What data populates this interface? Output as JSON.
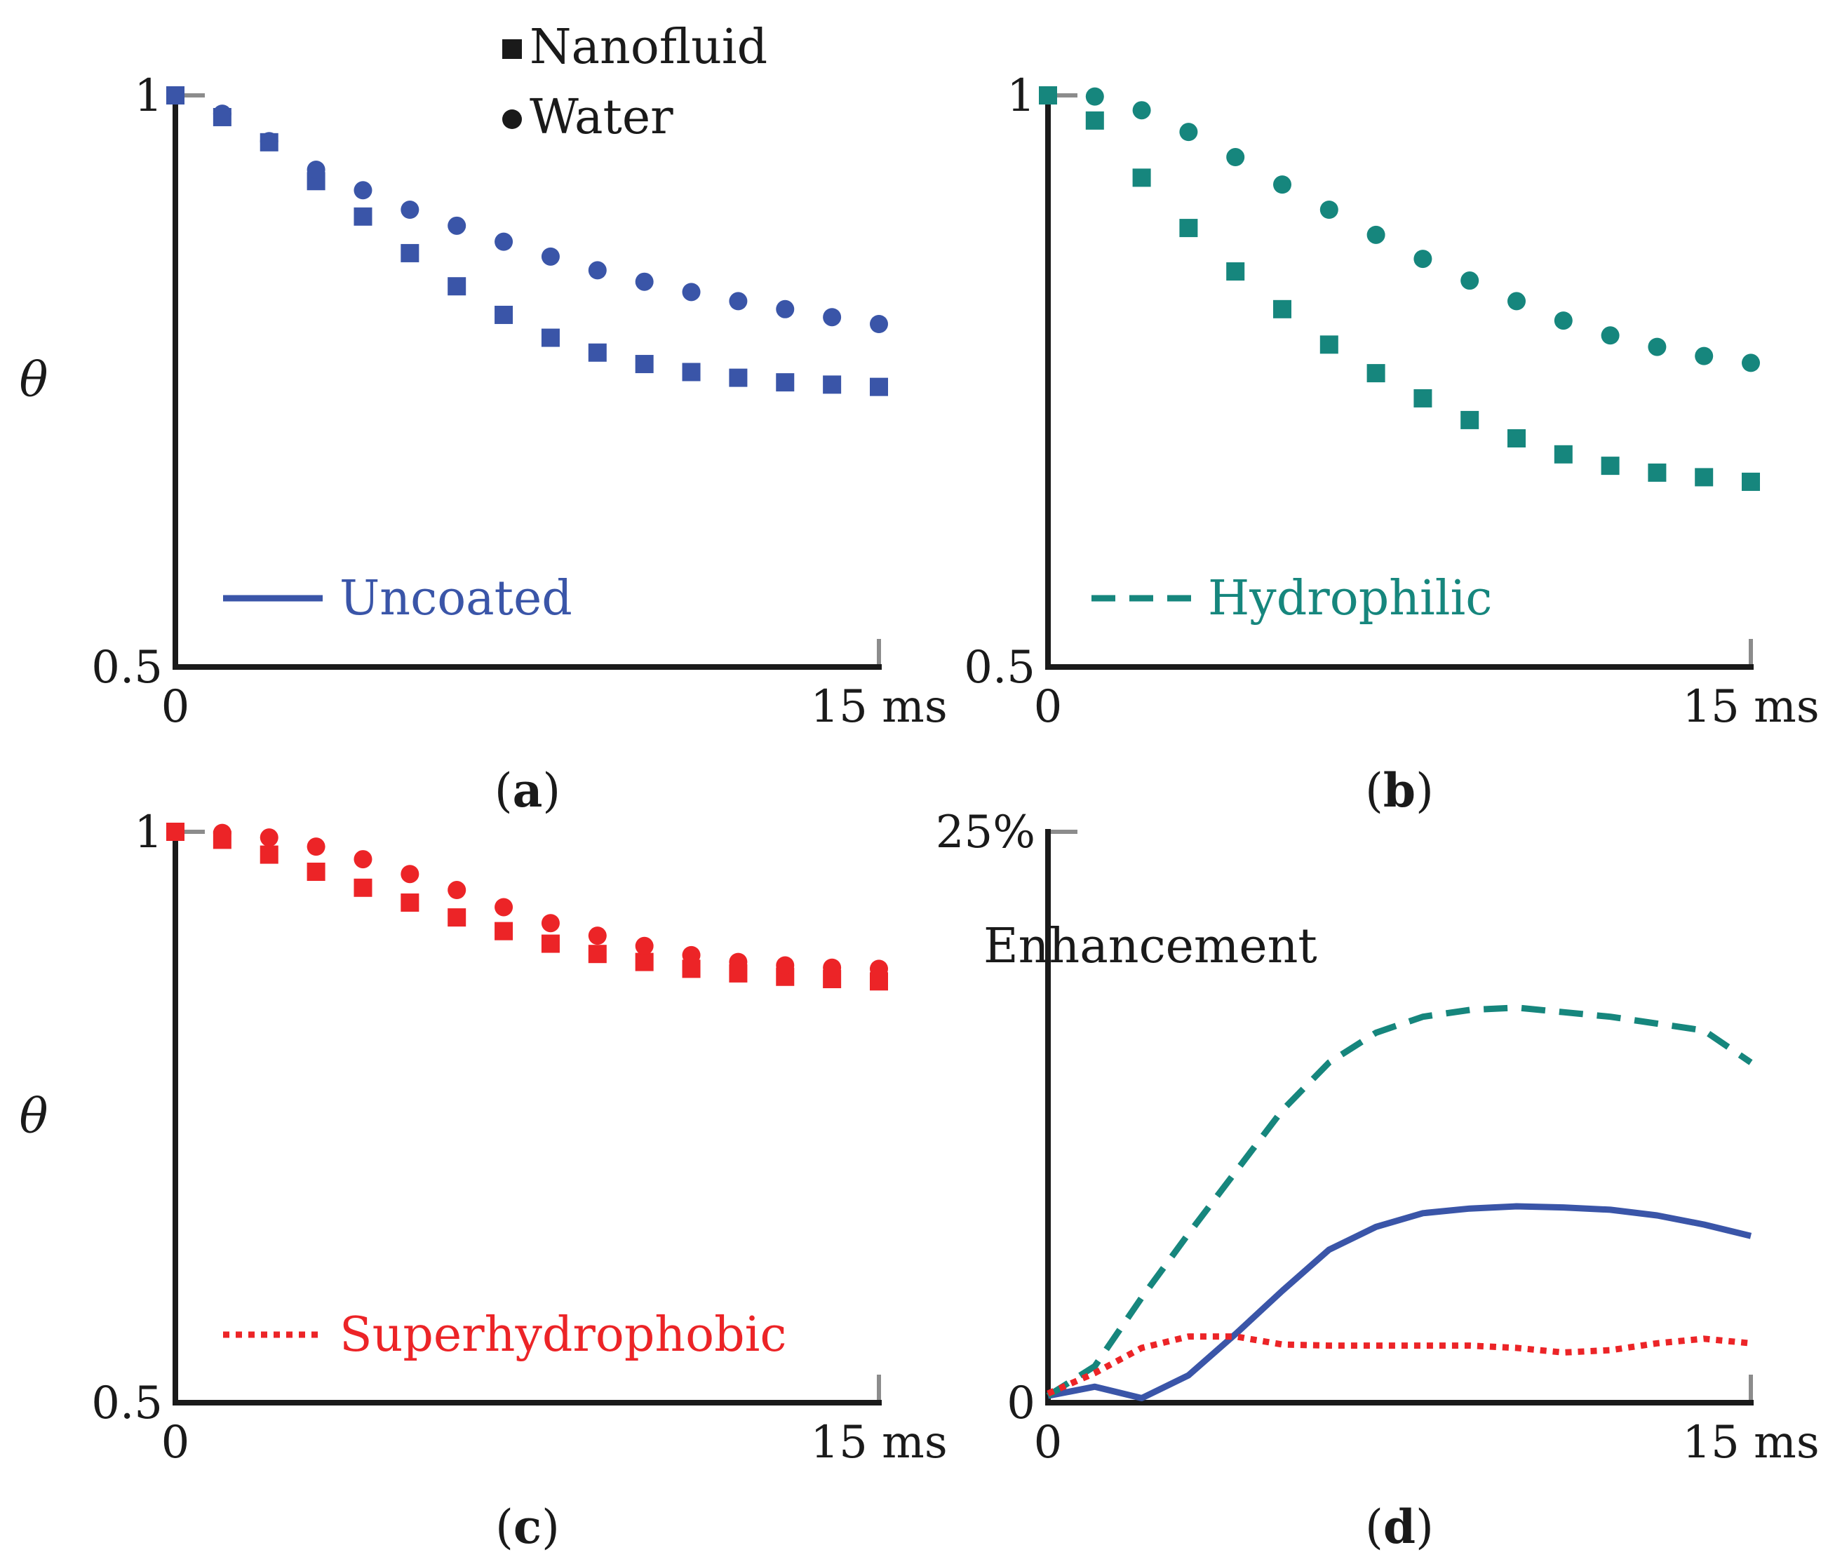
{
  "chart_data": [
    {
      "panel": "(a)",
      "panel_letter": "a",
      "type": "scatter",
      "ylabel": "θ",
      "x_tick_labels": [
        "0",
        "15 ms"
      ],
      "y_tick_labels": [
        "0.5",
        "1"
      ],
      "xlim": [
        0,
        15
      ],
      "ylim": [
        0.5,
        1
      ],
      "color": "#3a55a8",
      "line_style": "solid",
      "legend_label": "Uncoated",
      "marker_legend": {
        "nanofluid": "Nanofluid",
        "water": "Water"
      },
      "series": [
        {
          "name": "Nanofluid",
          "marker": "square",
          "x": [
            0,
            1,
            2,
            3,
            4,
            5,
            6,
            7,
            8,
            9,
            10,
            11,
            12,
            13,
            14,
            15
          ],
          "y": [
            1.0,
            0.981,
            0.959,
            0.925,
            0.894,
            0.862,
            0.833,
            0.808,
            0.788,
            0.775,
            0.765,
            0.758,
            0.753,
            0.749,
            0.747,
            0.745
          ]
        },
        {
          "name": "Water",
          "marker": "circle",
          "x": [
            0,
            1,
            2,
            3,
            4,
            5,
            6,
            7,
            8,
            9,
            10,
            11,
            12,
            13,
            14,
            15
          ],
          "y": [
            1.0,
            0.984,
            0.96,
            0.935,
            0.917,
            0.9,
            0.886,
            0.872,
            0.859,
            0.847,
            0.837,
            0.828,
            0.82,
            0.813,
            0.806,
            0.8
          ]
        }
      ]
    },
    {
      "panel": "(b)",
      "panel_letter": "b",
      "type": "scatter",
      "ylabel": "",
      "x_tick_labels": [
        "0",
        "15 ms"
      ],
      "y_tick_labels": [
        "0.5",
        "1"
      ],
      "xlim": [
        0,
        15
      ],
      "ylim": [
        0.5,
        1
      ],
      "color": "#16867d",
      "line_style": "dashed",
      "legend_label": "Hydrophilic",
      "series": [
        {
          "name": "Nanofluid",
          "marker": "square",
          "x": [
            0,
            1,
            2,
            3,
            4,
            5,
            6,
            7,
            8,
            9,
            10,
            11,
            12,
            13,
            14,
            15
          ],
          "y": [
            1.0,
            0.978,
            0.928,
            0.884,
            0.846,
            0.813,
            0.782,
            0.757,
            0.735,
            0.716,
            0.7,
            0.686,
            0.676,
            0.67,
            0.666,
            0.662
          ]
        },
        {
          "name": "Water",
          "marker": "circle",
          "x": [
            0,
            1,
            2,
            3,
            4,
            5,
            6,
            7,
            8,
            9,
            10,
            11,
            12,
            13,
            14,
            15
          ],
          "y": [
            1.0,
            0.999,
            0.987,
            0.968,
            0.946,
            0.922,
            0.9,
            0.878,
            0.857,
            0.838,
            0.82,
            0.803,
            0.79,
            0.78,
            0.772,
            0.766
          ]
        }
      ]
    },
    {
      "panel": "(c)",
      "panel_letter": "c",
      "type": "scatter",
      "ylabel": "θ",
      "x_tick_labels": [
        "0",
        "15 ms"
      ],
      "y_tick_labels": [
        "0.5",
        "1"
      ],
      "xlim": [
        0,
        15
      ],
      "ylim": [
        0.5,
        1
      ],
      "color": "#ec2427",
      "line_style": "dotted",
      "legend_label": "Superhydrophobic",
      "series": [
        {
          "name": "Nanofluid",
          "marker": "square",
          "x": [
            0,
            1,
            2,
            3,
            4,
            5,
            6,
            7,
            8,
            9,
            10,
            11,
            12,
            13,
            14,
            15
          ],
          "y": [
            1.0,
            0.993,
            0.98,
            0.965,
            0.951,
            0.938,
            0.925,
            0.913,
            0.902,
            0.893,
            0.886,
            0.88,
            0.876,
            0.873,
            0.871,
            0.869
          ]
        },
        {
          "name": "Water",
          "marker": "circle",
          "x": [
            0,
            1,
            2,
            3,
            4,
            5,
            6,
            7,
            8,
            9,
            10,
            11,
            12,
            13,
            14,
            15
          ],
          "y": [
            1.0,
            0.999,
            0.995,
            0.987,
            0.976,
            0.963,
            0.949,
            0.934,
            0.92,
            0.909,
            0.9,
            0.892,
            0.886,
            0.883,
            0.881,
            0.88
          ]
        }
      ]
    },
    {
      "panel": "(d)",
      "panel_letter": "d",
      "type": "line",
      "ylabel": "Enhancement",
      "x_tick_labels": [
        "0",
        "15 ms"
      ],
      "y_tick_labels": [
        "0",
        "25%"
      ],
      "xlim": [
        0,
        15
      ],
      "ylim": [
        0,
        25
      ],
      "series": [
        {
          "name": "Uncoated",
          "color": "#3a55a8",
          "line_style": "solid",
          "x": [
            0,
            1,
            2,
            3,
            4,
            5,
            6,
            7,
            8,
            9,
            10,
            11,
            12,
            13,
            14,
            15
          ],
          "y": [
            0.3,
            0.7,
            0.2,
            1.2,
            3.0,
            4.9,
            6.7,
            7.7,
            8.3,
            8.5,
            8.6,
            8.55,
            8.45,
            8.2,
            7.8,
            7.3
          ]
        },
        {
          "name": "Hydrophilic",
          "color": "#16867d",
          "line_style": "dashed",
          "x": [
            0,
            1,
            2,
            3,
            4,
            5,
            6,
            7,
            8,
            9,
            10,
            11,
            12,
            13,
            14,
            15
          ],
          "y": [
            0.3,
            1.6,
            4.6,
            7.4,
            10.1,
            12.8,
            14.9,
            16.2,
            16.9,
            17.2,
            17.3,
            17.1,
            16.9,
            16.6,
            16.3,
            14.9
          ]
        },
        {
          "name": "Superhydrophobic",
          "color": "#ec2427",
          "line_style": "dotted",
          "x": [
            0,
            1,
            2,
            3,
            4,
            5,
            6,
            7,
            8,
            9,
            10,
            11,
            12,
            13,
            14,
            15
          ],
          "y": [
            0.4,
            1.3,
            2.4,
            2.9,
            2.9,
            2.55,
            2.5,
            2.5,
            2.5,
            2.5,
            2.4,
            2.2,
            2.3,
            2.6,
            2.8,
            2.6
          ]
        }
      ]
    }
  ]
}
